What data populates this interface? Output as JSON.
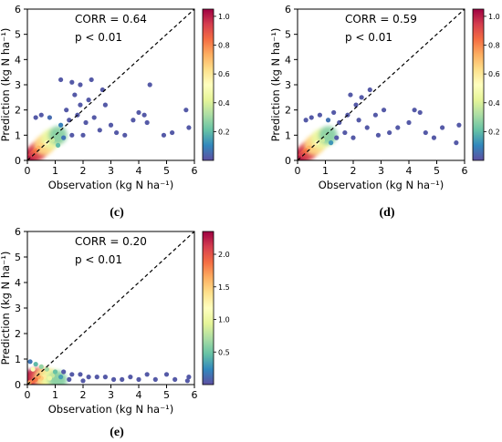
{
  "chart_data": [
    {
      "type": "scatter",
      "panel": "(c)",
      "xlabel": "Observation (kg N ha⁻¹)",
      "ylabel": "Prediction (kg N ha⁻¹)",
      "xlim": [
        0,
        6
      ],
      "ylim": [
        0,
        6
      ],
      "x_ticks": [
        0,
        1,
        2,
        3,
        4,
        5,
        6
      ],
      "y_ticks": [
        0,
        1,
        2,
        3,
        4,
        5,
        6
      ],
      "annotations": [
        "CORR = 0.64",
        "p < 0.01"
      ],
      "reference_line": "1:1 dashed",
      "colorbar": {
        "min": 0.0,
        "max": 1.05,
        "ticks": [
          0.2,
          0.4,
          0.6,
          0.8,
          1.0
        ],
        "colormap": "Spectral_r"
      },
      "points": [
        {
          "x": 1.2,
          "y": 3.2
        },
        {
          "x": 1.6,
          "y": 3.1
        },
        {
          "x": 1.9,
          "y": 3.0
        },
        {
          "x": 2.3,
          "y": 3.2
        },
        {
          "x": 2.7,
          "y": 2.8
        },
        {
          "x": 1.7,
          "y": 2.6
        },
        {
          "x": 2.2,
          "y": 2.4
        },
        {
          "x": 1.9,
          "y": 2.2
        },
        {
          "x": 2.8,
          "y": 2.2
        },
        {
          "x": 4.4,
          "y": 3.0
        },
        {
          "x": 5.7,
          "y": 2.0
        },
        {
          "x": 4.0,
          "y": 1.9
        },
        {
          "x": 4.3,
          "y": 1.5
        },
        {
          "x": 3.8,
          "y": 1.6
        },
        {
          "x": 4.2,
          "y": 1.8
        },
        {
          "x": 5.2,
          "y": 1.1
        },
        {
          "x": 4.9,
          "y": 1.0
        },
        {
          "x": 5.8,
          "y": 1.3
        },
        {
          "x": 3.5,
          "y": 1.0
        },
        {
          "x": 3.2,
          "y": 1.1
        },
        {
          "x": 3.0,
          "y": 1.4
        },
        {
          "x": 2.6,
          "y": 1.2
        },
        {
          "x": 2.4,
          "y": 1.7
        },
        {
          "x": 2.1,
          "y": 1.5
        },
        {
          "x": 1.8,
          "y": 1.8
        },
        {
          "x": 1.5,
          "y": 1.6
        },
        {
          "x": 2.0,
          "y": 1.0
        },
        {
          "x": 1.4,
          "y": 2.0
        },
        {
          "x": 1.2,
          "y": 1.4
        },
        {
          "x": 0.8,
          "y": 1.7
        },
        {
          "x": 0.5,
          "y": 1.8
        },
        {
          "x": 0.3,
          "y": 1.7
        },
        {
          "x": 1.0,
          "y": 1.1
        },
        {
          "x": 1.3,
          "y": 0.9
        },
        {
          "x": 1.6,
          "y": 1.0
        },
        {
          "x": 0.9,
          "y": 0.8
        },
        {
          "x": 1.1,
          "y": 0.6
        },
        {
          "x": 0.7,
          "y": 0.7
        },
        {
          "x": 0.6,
          "y": 0.6
        },
        {
          "x": 0.5,
          "y": 0.6
        },
        {
          "x": 0.4,
          "y": 0.5
        },
        {
          "x": 0.3,
          "y": 0.4
        },
        {
          "x": 0.25,
          "y": 0.35
        },
        {
          "x": 0.2,
          "y": 0.3
        },
        {
          "x": 0.15,
          "y": 0.25
        },
        {
          "x": 0.1,
          "y": 0.2
        },
        {
          "x": 0.05,
          "y": 0.1
        }
      ]
    },
    {
      "type": "scatter",
      "panel": "(d)",
      "xlabel": "Observation (kg N ha⁻¹)",
      "ylabel": "Prediction (kg N ha⁻¹)",
      "xlim": [
        0,
        6
      ],
      "ylim": [
        0,
        6
      ],
      "x_ticks": [
        0,
        1,
        2,
        3,
        4,
        5,
        6
      ],
      "y_ticks": [
        0,
        1,
        2,
        3,
        4,
        5,
        6
      ],
      "annotations": [
        "CORR = 0.59",
        "p < 0.01"
      ],
      "reference_line": "1:1 dashed",
      "colorbar": {
        "min": 0.0,
        "max": 1.05,
        "ticks": [
          0.2,
          0.4,
          0.6,
          0.8,
          1.0
        ],
        "colormap": "Spectral_r"
      },
      "points": [
        {
          "x": 2.6,
          "y": 2.8
        },
        {
          "x": 1.9,
          "y": 2.6
        },
        {
          "x": 2.3,
          "y": 2.5
        },
        {
          "x": 2.1,
          "y": 2.2
        },
        {
          "x": 4.2,
          "y": 2.0
        },
        {
          "x": 4.4,
          "y": 1.9
        },
        {
          "x": 3.1,
          "y": 2.0
        },
        {
          "x": 2.8,
          "y": 1.8
        },
        {
          "x": 4.0,
          "y": 1.5
        },
        {
          "x": 3.6,
          "y": 1.3
        },
        {
          "x": 4.9,
          "y": 0.9
        },
        {
          "x": 4.6,
          "y": 1.1
        },
        {
          "x": 5.7,
          "y": 0.7
        },
        {
          "x": 5.8,
          "y": 1.4
        },
        {
          "x": 5.2,
          "y": 1.3
        },
        {
          "x": 3.3,
          "y": 1.1
        },
        {
          "x": 2.9,
          "y": 1.0
        },
        {
          "x": 2.5,
          "y": 1.3
        },
        {
          "x": 2.2,
          "y": 1.6
        },
        {
          "x": 1.8,
          "y": 1.8
        },
        {
          "x": 1.5,
          "y": 1.5
        },
        {
          "x": 1.3,
          "y": 1.9
        },
        {
          "x": 1.1,
          "y": 1.6
        },
        {
          "x": 0.8,
          "y": 1.8
        },
        {
          "x": 0.5,
          "y": 1.7
        },
        {
          "x": 0.3,
          "y": 1.6
        },
        {
          "x": 1.7,
          "y": 1.1
        },
        {
          "x": 1.4,
          "y": 0.9
        },
        {
          "x": 2.0,
          "y": 0.9
        },
        {
          "x": 1.0,
          "y": 1.0
        },
        {
          "x": 0.9,
          "y": 0.8
        },
        {
          "x": 1.2,
          "y": 0.7
        },
        {
          "x": 0.7,
          "y": 0.7
        },
        {
          "x": 0.6,
          "y": 0.6
        },
        {
          "x": 0.5,
          "y": 0.5
        },
        {
          "x": 0.4,
          "y": 0.5
        },
        {
          "x": 0.3,
          "y": 0.4
        },
        {
          "x": 0.25,
          "y": 0.35
        },
        {
          "x": 0.2,
          "y": 0.3
        },
        {
          "x": 0.15,
          "y": 0.25
        },
        {
          "x": 0.1,
          "y": 0.2
        },
        {
          "x": 0.05,
          "y": 0.1
        }
      ]
    },
    {
      "type": "scatter",
      "panel": "(e)",
      "xlabel": "Observation (kg N ha⁻¹)",
      "ylabel": "Prediction (kg N ha⁻¹)",
      "xlim": [
        0,
        6
      ],
      "ylim": [
        0,
        6
      ],
      "x_ticks": [
        0,
        1,
        2,
        3,
        4,
        5,
        6
      ],
      "y_ticks": [
        0,
        1,
        2,
        3,
        4,
        5,
        6
      ],
      "annotations": [
        "CORR = 0.20",
        "p < 0.01"
      ],
      "reference_line": "1:1 dashed",
      "colorbar": {
        "min": 0.0,
        "max": 2.35,
        "ticks": [
          0.5,
          1.0,
          1.5,
          2.0
        ],
        "colormap": "Spectral_r"
      },
      "points": [
        {
          "x": 0.1,
          "y": 0.9
        },
        {
          "x": 0.3,
          "y": 0.8
        },
        {
          "x": 0.5,
          "y": 0.7
        },
        {
          "x": 0.2,
          "y": 0.6
        },
        {
          "x": 0.7,
          "y": 0.6
        },
        {
          "x": 1.0,
          "y": 0.5
        },
        {
          "x": 1.3,
          "y": 0.5
        },
        {
          "x": 1.6,
          "y": 0.4
        },
        {
          "x": 1.9,
          "y": 0.4
        },
        {
          "x": 2.2,
          "y": 0.3
        },
        {
          "x": 2.5,
          "y": 0.3
        },
        {
          "x": 2.8,
          "y": 0.3
        },
        {
          "x": 3.1,
          "y": 0.2
        },
        {
          "x": 3.4,
          "y": 0.2
        },
        {
          "x": 3.7,
          "y": 0.3
        },
        {
          "x": 4.0,
          "y": 0.2
        },
        {
          "x": 4.3,
          "y": 0.4
        },
        {
          "x": 4.6,
          "y": 0.2
        },
        {
          "x": 5.0,
          "y": 0.4
        },
        {
          "x": 5.3,
          "y": 0.2
        },
        {
          "x": 5.8,
          "y": 0.3
        },
        {
          "x": 5.75,
          "y": 0.15
        },
        {
          "x": 2.0,
          "y": 0.15
        },
        {
          "x": 1.5,
          "y": 0.2
        },
        {
          "x": 1.2,
          "y": 0.3
        },
        {
          "x": 0.9,
          "y": 0.35
        },
        {
          "x": 0.8,
          "y": 0.25
        },
        {
          "x": 0.6,
          "y": 0.3
        },
        {
          "x": 0.5,
          "y": 0.25
        },
        {
          "x": 0.4,
          "y": 0.3
        },
        {
          "x": 0.3,
          "y": 0.2
        },
        {
          "x": 0.2,
          "y": 0.15
        },
        {
          "x": 0.1,
          "y": 0.1
        },
        {
          "x": 0.05,
          "y": 0.05
        }
      ]
    }
  ]
}
